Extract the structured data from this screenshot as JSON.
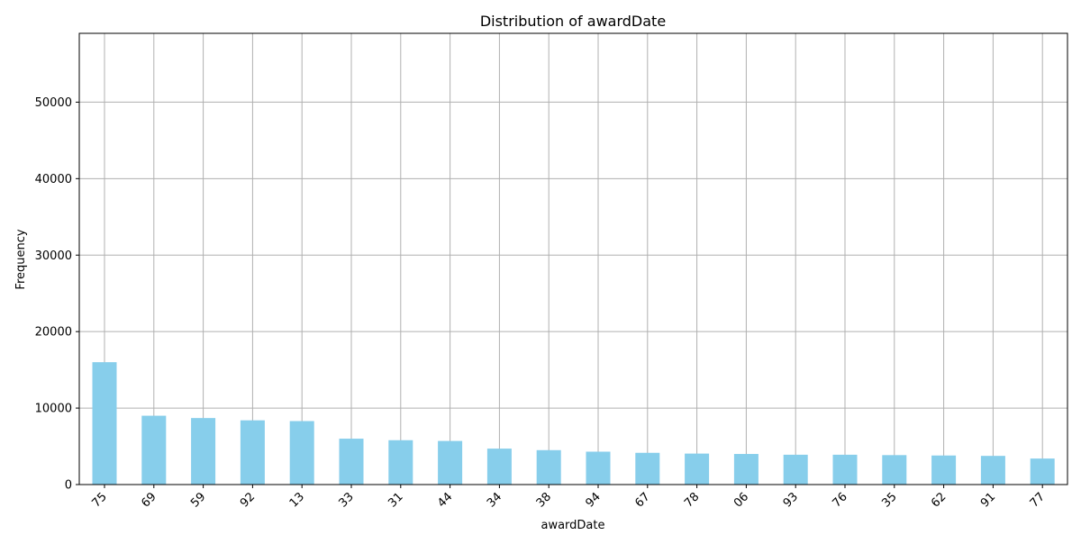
{
  "chart_data": {
    "type": "bar",
    "title": "Distribution of awardDate",
    "xlabel": "awardDate",
    "ylabel": "Frequency",
    "categories": [
      "75",
      "69",
      "59",
      "92",
      "13",
      "33",
      "31",
      "44",
      "34",
      "38",
      "94",
      "67",
      "78",
      "06",
      "93",
      "76",
      "35",
      "62",
      "91",
      "77"
    ],
    "values": [
      16000,
      9000,
      8700,
      8400,
      8300,
      6000,
      5800,
      5700,
      4700,
      4500,
      4300,
      4150,
      4050,
      4000,
      3900,
      3900,
      3850,
      3800,
      3750,
      3400
    ],
    "ylim": [
      0,
      59000
    ],
    "yticks": [
      0,
      10000,
      20000,
      30000,
      40000,
      50000
    ],
    "grid": true,
    "bar_color": "#87ceeb",
    "grid_color": "#b0b0b0"
  }
}
